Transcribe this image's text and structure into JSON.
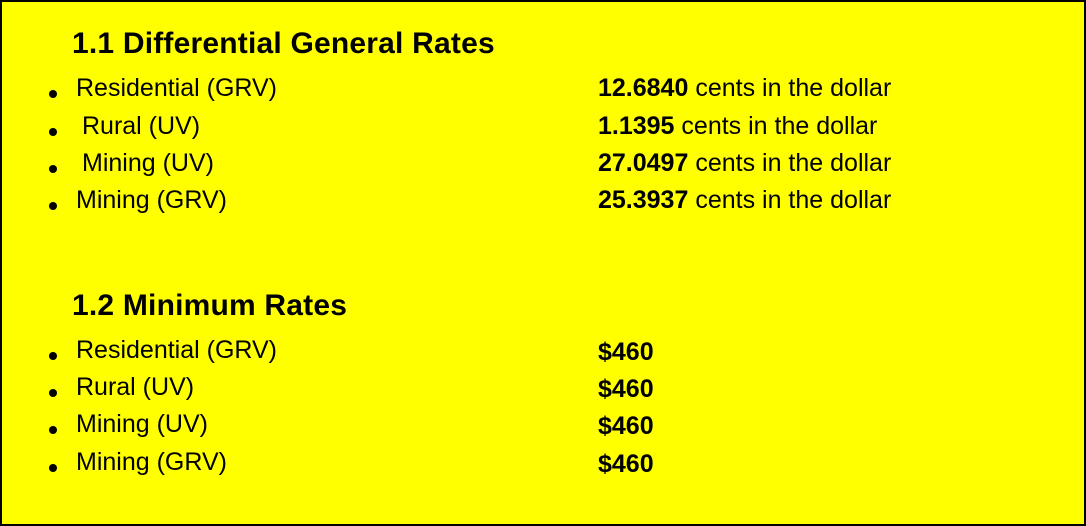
{
  "section_general": {
    "title": "1.1 Differential General Rates",
    "items": [
      {
        "label": "Residential (GRV)",
        "value": "12.6840",
        "unit": "cents in the dollar"
      },
      {
        "label": "Rural (UV)",
        "value": "1.1395",
        "unit": "cents in the dollar"
      },
      {
        "label": "Mining (UV)",
        "value": "27.0497",
        "unit": "cents in the dollar"
      },
      {
        "label": "Mining (GRV)",
        "value": "25.3937",
        "unit": "cents in the dollar"
      }
    ]
  },
  "section_minimum": {
    "title": "1.2 Minimum Rates",
    "items": [
      {
        "label": "Residential (GRV)",
        "value": "$460"
      },
      {
        "label": "Rural (UV)",
        "value": "$460"
      },
      {
        "label": "Mining (UV)",
        "value": "$460"
      },
      {
        "label": "Mining (GRV)",
        "value": "$460"
      }
    ]
  },
  "colors": {
    "background": "#ffff00",
    "text": "#000000",
    "border": "#000000"
  }
}
